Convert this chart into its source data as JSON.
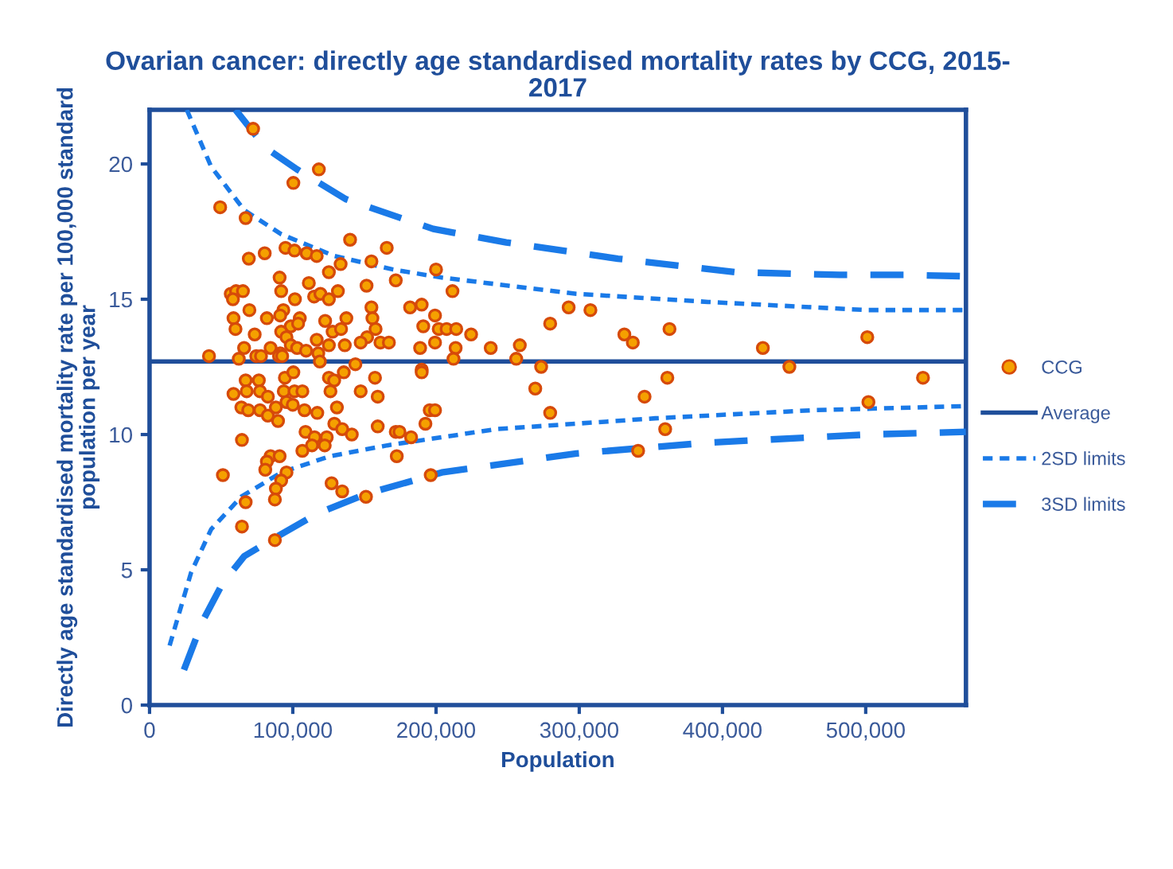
{
  "chart_data": {
    "type": "scatter",
    "title": "Ovarian cancer: directly age standardised mortality rates by CCG, 2015-\n2017",
    "xlabel": "Population",
    "ylabel": "Directly age standardised mortality rate per 100,000 standard\npopulation per year",
    "xlim": [
      0,
      570000
    ],
    "ylim": [
      0,
      22
    ],
    "xticks": [
      0,
      {
        "value": 100000,
        "label": "100,000"
      },
      {
        "value": 200000,
        "label": "200,000"
      },
      {
        "value": 300000,
        "label": "300,000"
      },
      {
        "value": 400000,
        "label": "400,000"
      },
      {
        "value": 500000,
        "label": "500,000"
      }
    ],
    "yticks": [
      0,
      5,
      10,
      15,
      20
    ],
    "grid": false,
    "legend": "right",
    "series": [
      {
        "name": "CCG",
        "color": "#f5a000",
        "marker": "circle",
        "x": [
          72300,
          118200,
          100400,
          49300,
          67100,
          140000,
          165600,
          94900,
          101200,
          109700,
          116700,
          69300,
          80400,
          154900,
          133400,
          125200,
          171900,
          90800,
          111200,
          151500,
          56700,
          60400,
          65200,
          91900,
          58200,
          114900,
          119300,
          125200,
          131500,
          101500,
          69700,
          93400,
          154900,
          58600,
          81900,
          91200,
          104900,
          122600,
          137400,
          155600,
          98600,
          103700,
          60000,
          91900,
          127800,
          133700,
          157800,
          151900,
          73400,
          95600,
          116700,
          66000,
          84500,
          91200,
          98600,
          103000,
          109300,
          117800,
          125200,
          136300,
          147400,
          161200,
          167100,
          41500,
          62300,
          74500,
          77800,
          90400,
          92600,
          118900,
          143700,
          67100,
          76300,
          94500,
          100400,
          125200,
          128900,
          135600,
          157400,
          58600,
          67800,
          77100,
          82600,
          93700,
          101200,
          106700,
          126300,
          147400,
          159300,
          64100,
          68900,
          77100,
          82600,
          88200,
          95600,
          100000,
          108200,
          117100,
          130800,
          89700,
          129000,
          134500,
          141200,
          159300,
          171900,
          64500,
          108900,
          115200,
          123700,
          113400,
          122300,
          106700,
          84500,
          90800,
          81900,
          80800,
          95600,
          91900,
          51200,
          88200,
          87500,
          67100,
          127100,
          134500,
          151100,
          64500,
          87500,
          172600,
          200000,
          211500,
          181900,
          190000,
          199300,
          191100,
          201900,
          207400,
          214100,
          224500,
          188900,
          199300,
          213700,
          238200,
          258500,
          279700,
          292600,
          307800,
          331500,
          337400,
          363000,
          428200,
          501100,
          212200,
          256000,
          190000,
          190000,
          273400,
          446700,
          269300,
          361500,
          345600,
          501900,
          540000,
          195600,
          199300,
          279700,
          192600,
          174500,
          182600,
          360000,
          196300,
          341100
        ],
        "values": [
          21.3,
          19.8,
          19.3,
          18.4,
          18.0,
          17.2,
          16.9,
          16.9,
          16.8,
          16.7,
          16.6,
          16.5,
          16.7,
          16.4,
          16.3,
          16.0,
          15.7,
          15.8,
          15.6,
          15.5,
          15.2,
          15.3,
          15.3,
          15.3,
          15.0,
          15.1,
          15.2,
          15.0,
          15.3,
          15.0,
          14.6,
          14.6,
          14.7,
          14.3,
          14.3,
          14.4,
          14.3,
          14.2,
          14.3,
          14.3,
          14.0,
          14.1,
          13.9,
          13.8,
          13.8,
          13.9,
          13.9,
          13.6,
          13.7,
          13.6,
          13.5,
          13.2,
          13.2,
          13.0,
          13.3,
          13.2,
          13.1,
          13.0,
          13.3,
          13.3,
          13.4,
          13.4,
          13.4,
          12.9,
          12.8,
          12.9,
          12.9,
          12.9,
          12.9,
          12.7,
          12.6,
          12.0,
          12.0,
          12.1,
          12.3,
          12.1,
          12.0,
          12.3,
          12.1,
          11.5,
          11.6,
          11.6,
          11.4,
          11.6,
          11.6,
          11.6,
          11.6,
          11.6,
          11.4,
          11.0,
          10.9,
          10.9,
          10.7,
          11.0,
          11.2,
          11.1,
          10.9,
          10.8,
          11.0,
          10.5,
          10.4,
          10.2,
          10.0,
          10.3,
          10.1,
          9.8,
          10.1,
          9.9,
          9.9,
          9.6,
          9.6,
          9.4,
          9.2,
          9.2,
          9.0,
          8.7,
          8.6,
          8.3,
          8.5,
          8.0,
          7.6,
          7.5,
          8.2,
          7.9,
          7.7,
          6.6,
          6.1,
          9.2,
          16.1,
          15.3,
          14.7,
          14.8,
          14.4,
          14.0,
          13.9,
          13.9,
          13.9,
          13.7,
          13.2,
          13.4,
          13.2,
          13.2,
          13.3,
          14.1,
          14.7,
          14.6,
          13.7,
          13.4,
          13.9,
          13.2,
          13.6,
          12.8,
          12.8,
          12.4,
          12.3,
          12.5,
          12.5,
          11.7,
          12.1,
          11.4,
          11.2,
          12.1,
          10.9,
          10.9,
          10.8,
          10.4,
          10.1,
          9.9,
          10.2,
          8.5,
          9.4
        ]
      },
      {
        "name": "Average",
        "type": "line",
        "color": "#1f4e9a",
        "line_style": "solid",
        "x": [
          0,
          570000
        ],
        "values": [
          12.7,
          12.7
        ]
      },
      {
        "name": "2SD limits",
        "type": "line",
        "color": "#1a7ae8",
        "line_style": "dotted",
        "x": [
          26000,
          43000,
          66000,
          92000,
          129000,
          170000,
          204000,
          298000,
          390000,
          501000,
          570000
        ],
        "values": [
          22,
          19.9,
          18.3,
          17.4,
          16.6,
          16.1,
          15.8,
          15.2,
          14.9,
          14.6,
          14.6
        ]
      },
      {
        "type": "line",
        "color": "#1a7ae8",
        "line_style": "dotted",
        "x": [
          14000,
          29000,
          43000,
          64000,
          92000,
          126000,
          166000,
          242000,
          353000,
          464000,
          534000,
          570000
        ],
        "values": [
          2.2,
          4.9,
          6.5,
          7.7,
          8.6,
          9.2,
          9.6,
          10.2,
          10.6,
          10.9,
          11.0,
          11.05
        ]
      },
      {
        "name": "3SD limits",
        "type": "line",
        "color": "#1a7ae8",
        "line_style": "dashed",
        "x": [
          60000,
          81000,
          103000,
          137000,
          170000,
          198000,
          249000,
          327000,
          409000,
          482000,
          527000,
          570000
        ],
        "values": [
          22,
          20.6,
          19.8,
          18.7,
          18.1,
          17.6,
          17.1,
          16.5,
          16.0,
          15.9,
          15.9,
          15.85
        ]
      },
      {
        "type": "line",
        "color": "#1a7ae8",
        "line_style": "dashed",
        "x": [
          24000,
          37000,
          51000,
          66000,
          88000,
          118000,
          151000,
          204000,
          298000,
          390000,
          501000,
          570000
        ],
        "values": [
          1.3,
          3.1,
          4.5,
          5.5,
          6.2,
          7.1,
          7.8,
          8.6,
          9.3,
          9.7,
          10.0,
          10.1
        ]
      }
    ]
  }
}
